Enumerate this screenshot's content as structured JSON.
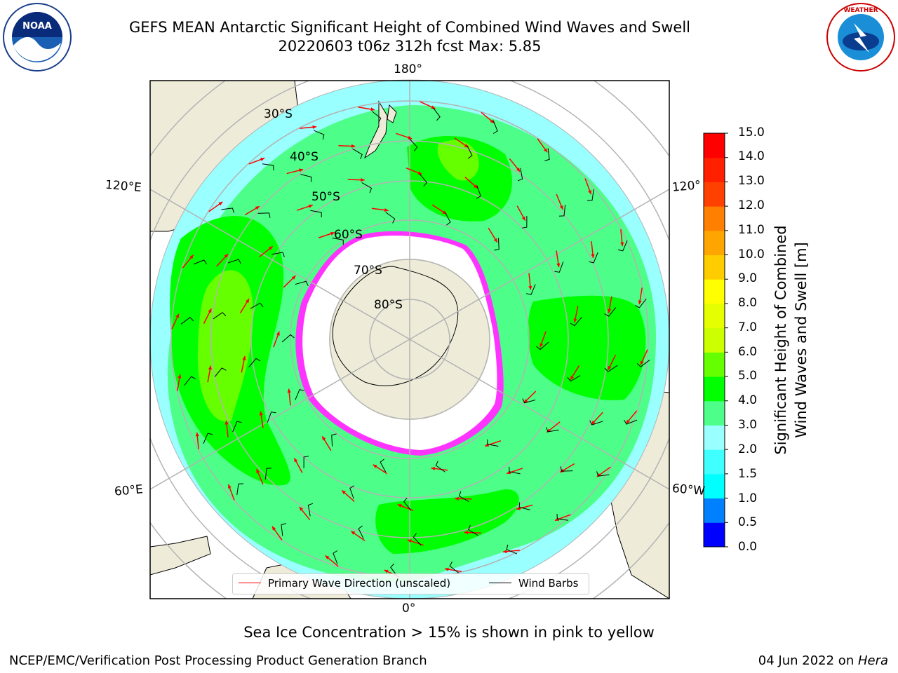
{
  "header": {
    "title_line1": "GEFS MEAN Antarctic Significant Height of Combined Wind Waves and Swell",
    "title_line2": "20220603 t06z 312h fcst   Max: 5.85"
  },
  "logos": {
    "left": {
      "name": "NOAA",
      "ring_text": "NATIONAL OCEANIC AND ATMOSPHERIC ADMINISTRATION · U.S. DEPARTMENT OF COMMERCE"
    },
    "right": {
      "name": "NATIONAL WEATHER SERVICE"
    }
  },
  "map": {
    "longitude_labels": {
      "top": "180°",
      "bottom": "0°",
      "left_upper": "120°E",
      "left_lower": "60°E",
      "right_upper": "120°",
      "right_lower": "60°W"
    },
    "latitude_labels": [
      "30°S",
      "40°S",
      "50°S",
      "60°S",
      "70°S",
      "80°S"
    ],
    "colors": {
      "ocean_default": "#4dff88",
      "land": "#eeecd9",
      "ice_shelf": "#ffffff",
      "ice_edge": "#ff33ff",
      "wave_arrow": "#ff0000",
      "wind_barb": "#000000",
      "grid": "#b3b3b3"
    }
  },
  "colorbar": {
    "title_line1": "Significant Height of Combined",
    "title_line2": "Wind Waves and Swell [m]",
    "ticks": [
      "0.0",
      "0.5",
      "1.0",
      "1.5",
      "2.0",
      "3.0",
      "4.0",
      "5.0",
      "6.0",
      "7.0",
      "8.0",
      "9.0",
      "10.0",
      "11.0",
      "12.0",
      "13.0",
      "14.0",
      "15.0"
    ],
    "colors": [
      "#0000ff",
      "#0080ff",
      "#00ffff",
      "#40ffff",
      "#99ffff",
      "#4dff88",
      "#00ff00",
      "#66ff00",
      "#ccff00",
      "#e6ff00",
      "#ffff00",
      "#ffcc00",
      "#ffa500",
      "#ff7f00",
      "#ff4000",
      "#ff2000",
      "#ff0000"
    ]
  },
  "legend": {
    "wave_label": "Primary Wave Direction (unscaled)",
    "wind_label": "Wind Barbs"
  },
  "caption": "Sea Ice Concentration > 15% is shown in pink to yellow",
  "footer": {
    "left": "NCEP/EMC/Verification Post Processing Product Generation Branch",
    "right_date": "04 Jun 2022 on ",
    "right_machine": "Hera"
  }
}
